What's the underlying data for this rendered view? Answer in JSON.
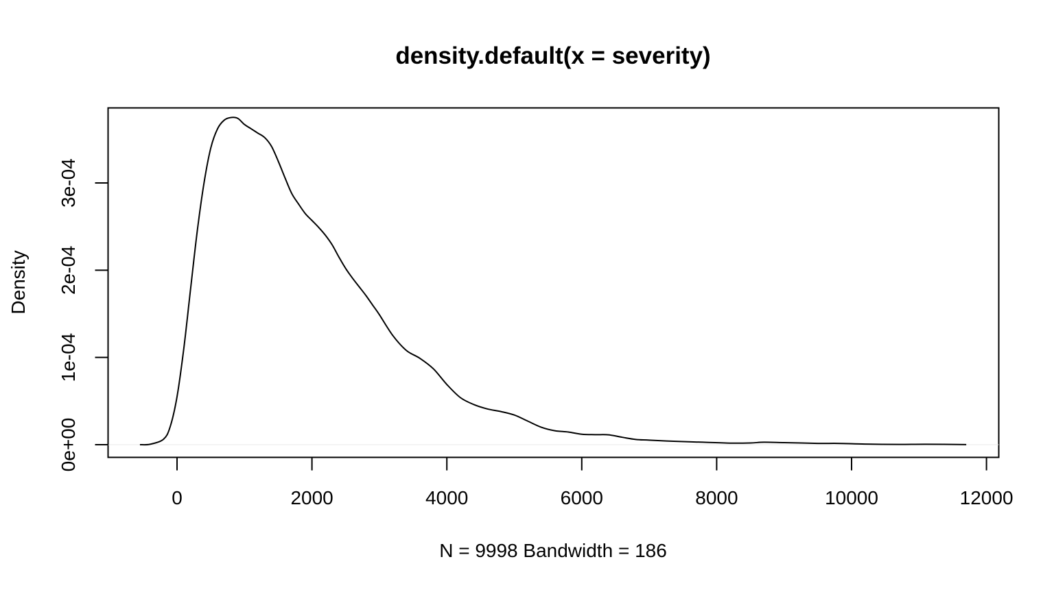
{
  "chart_data": {
    "type": "line",
    "title": "density.default(x = severity)",
    "xlabel": "N = 9998   Bandwidth = 186",
    "ylabel": "Density",
    "xlim": [
      -1000,
      12000
    ],
    "ylim": [
      0,
      0.00038
    ],
    "x_ticks": [
      0,
      2000,
      4000,
      6000,
      8000,
      10000,
      12000
    ],
    "x_tick_labels": [
      "0",
      "2000",
      "4000",
      "6000",
      "8000",
      "10000",
      "12000"
    ],
    "y_ticks": [
      0,
      0.0001,
      0.0002,
      0.0003
    ],
    "y_tick_labels": [
      "0e+00",
      "1e-04",
      "2e-04",
      "3e-04"
    ],
    "grid": false,
    "baseline": 0,
    "series": [
      {
        "x": [
          -550,
          -400,
          -200,
          -100,
          0,
          100,
          200,
          300,
          400,
          500,
          600,
          700,
          800,
          900,
          1000,
          1100,
          1200,
          1300,
          1400,
          1500,
          1600,
          1700,
          1800,
          1900,
          2000,
          2100,
          2200,
          2300,
          2400,
          2500,
          2600,
          2700,
          2800,
          2900,
          3000,
          3200,
          3400,
          3600,
          3800,
          4000,
          4200,
          4400,
          4600,
          4800,
          5000,
          5200,
          5400,
          5600,
          5800,
          6000,
          6200,
          6400,
          6600,
          6800,
          7000,
          7400,
          7800,
          8200,
          8500,
          8700,
          9000,
          9500,
          9800,
          10200,
          10700,
          11100,
          11700
        ],
        "y": [
          0.0,
          5e-07,
          6.3e-06,
          2.1e-05,
          5.5e-05,
          0.00011,
          0.000178,
          0.000245,
          0.0003,
          0.00034,
          0.000362,
          0.000372,
          0.000375,
          0.000374,
          0.000367,
          0.000362,
          0.000357,
          0.000352,
          0.000342,
          0.000325,
          0.000306,
          0.000288,
          0.000276,
          0.000265,
          0.000257,
          0.000249,
          0.00024,
          0.000229,
          0.000215,
          0.000202,
          0.000191,
          0.000181,
          0.000171,
          0.00016,
          0.000149,
          0.000125,
          0.000108,
          9.9e-05,
          8.7e-05,
          6.9e-05,
          5.4e-05,
          4.6e-05,
          4.1e-05,
          3.8e-05,
          3.4e-05,
          2.7e-05,
          2e-05,
          1.6e-05,
          1.45e-05,
          1.2e-05,
          1.15e-05,
          1.13e-05,
          8.5e-06,
          6e-06,
          5.2e-06,
          3.8e-06,
          2.8e-06,
          1.8e-06,
          2e-06,
          2.8e-06,
          2.4e-06,
          1.5e-06,
          1.5e-06,
          7e-07,
          3e-07,
          5e-07,
          1e-07
        ]
      }
    ]
  }
}
